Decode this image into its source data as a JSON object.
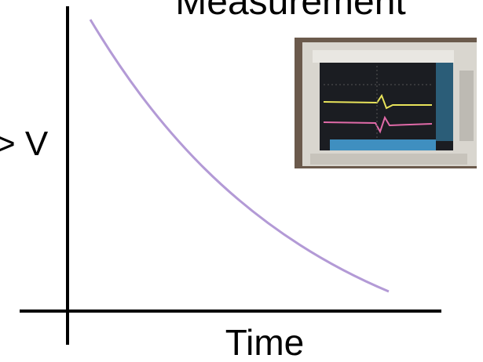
{
  "title": "Measurement",
  "y_axis_label": "> V",
  "x_axis_label": "Time"
}
